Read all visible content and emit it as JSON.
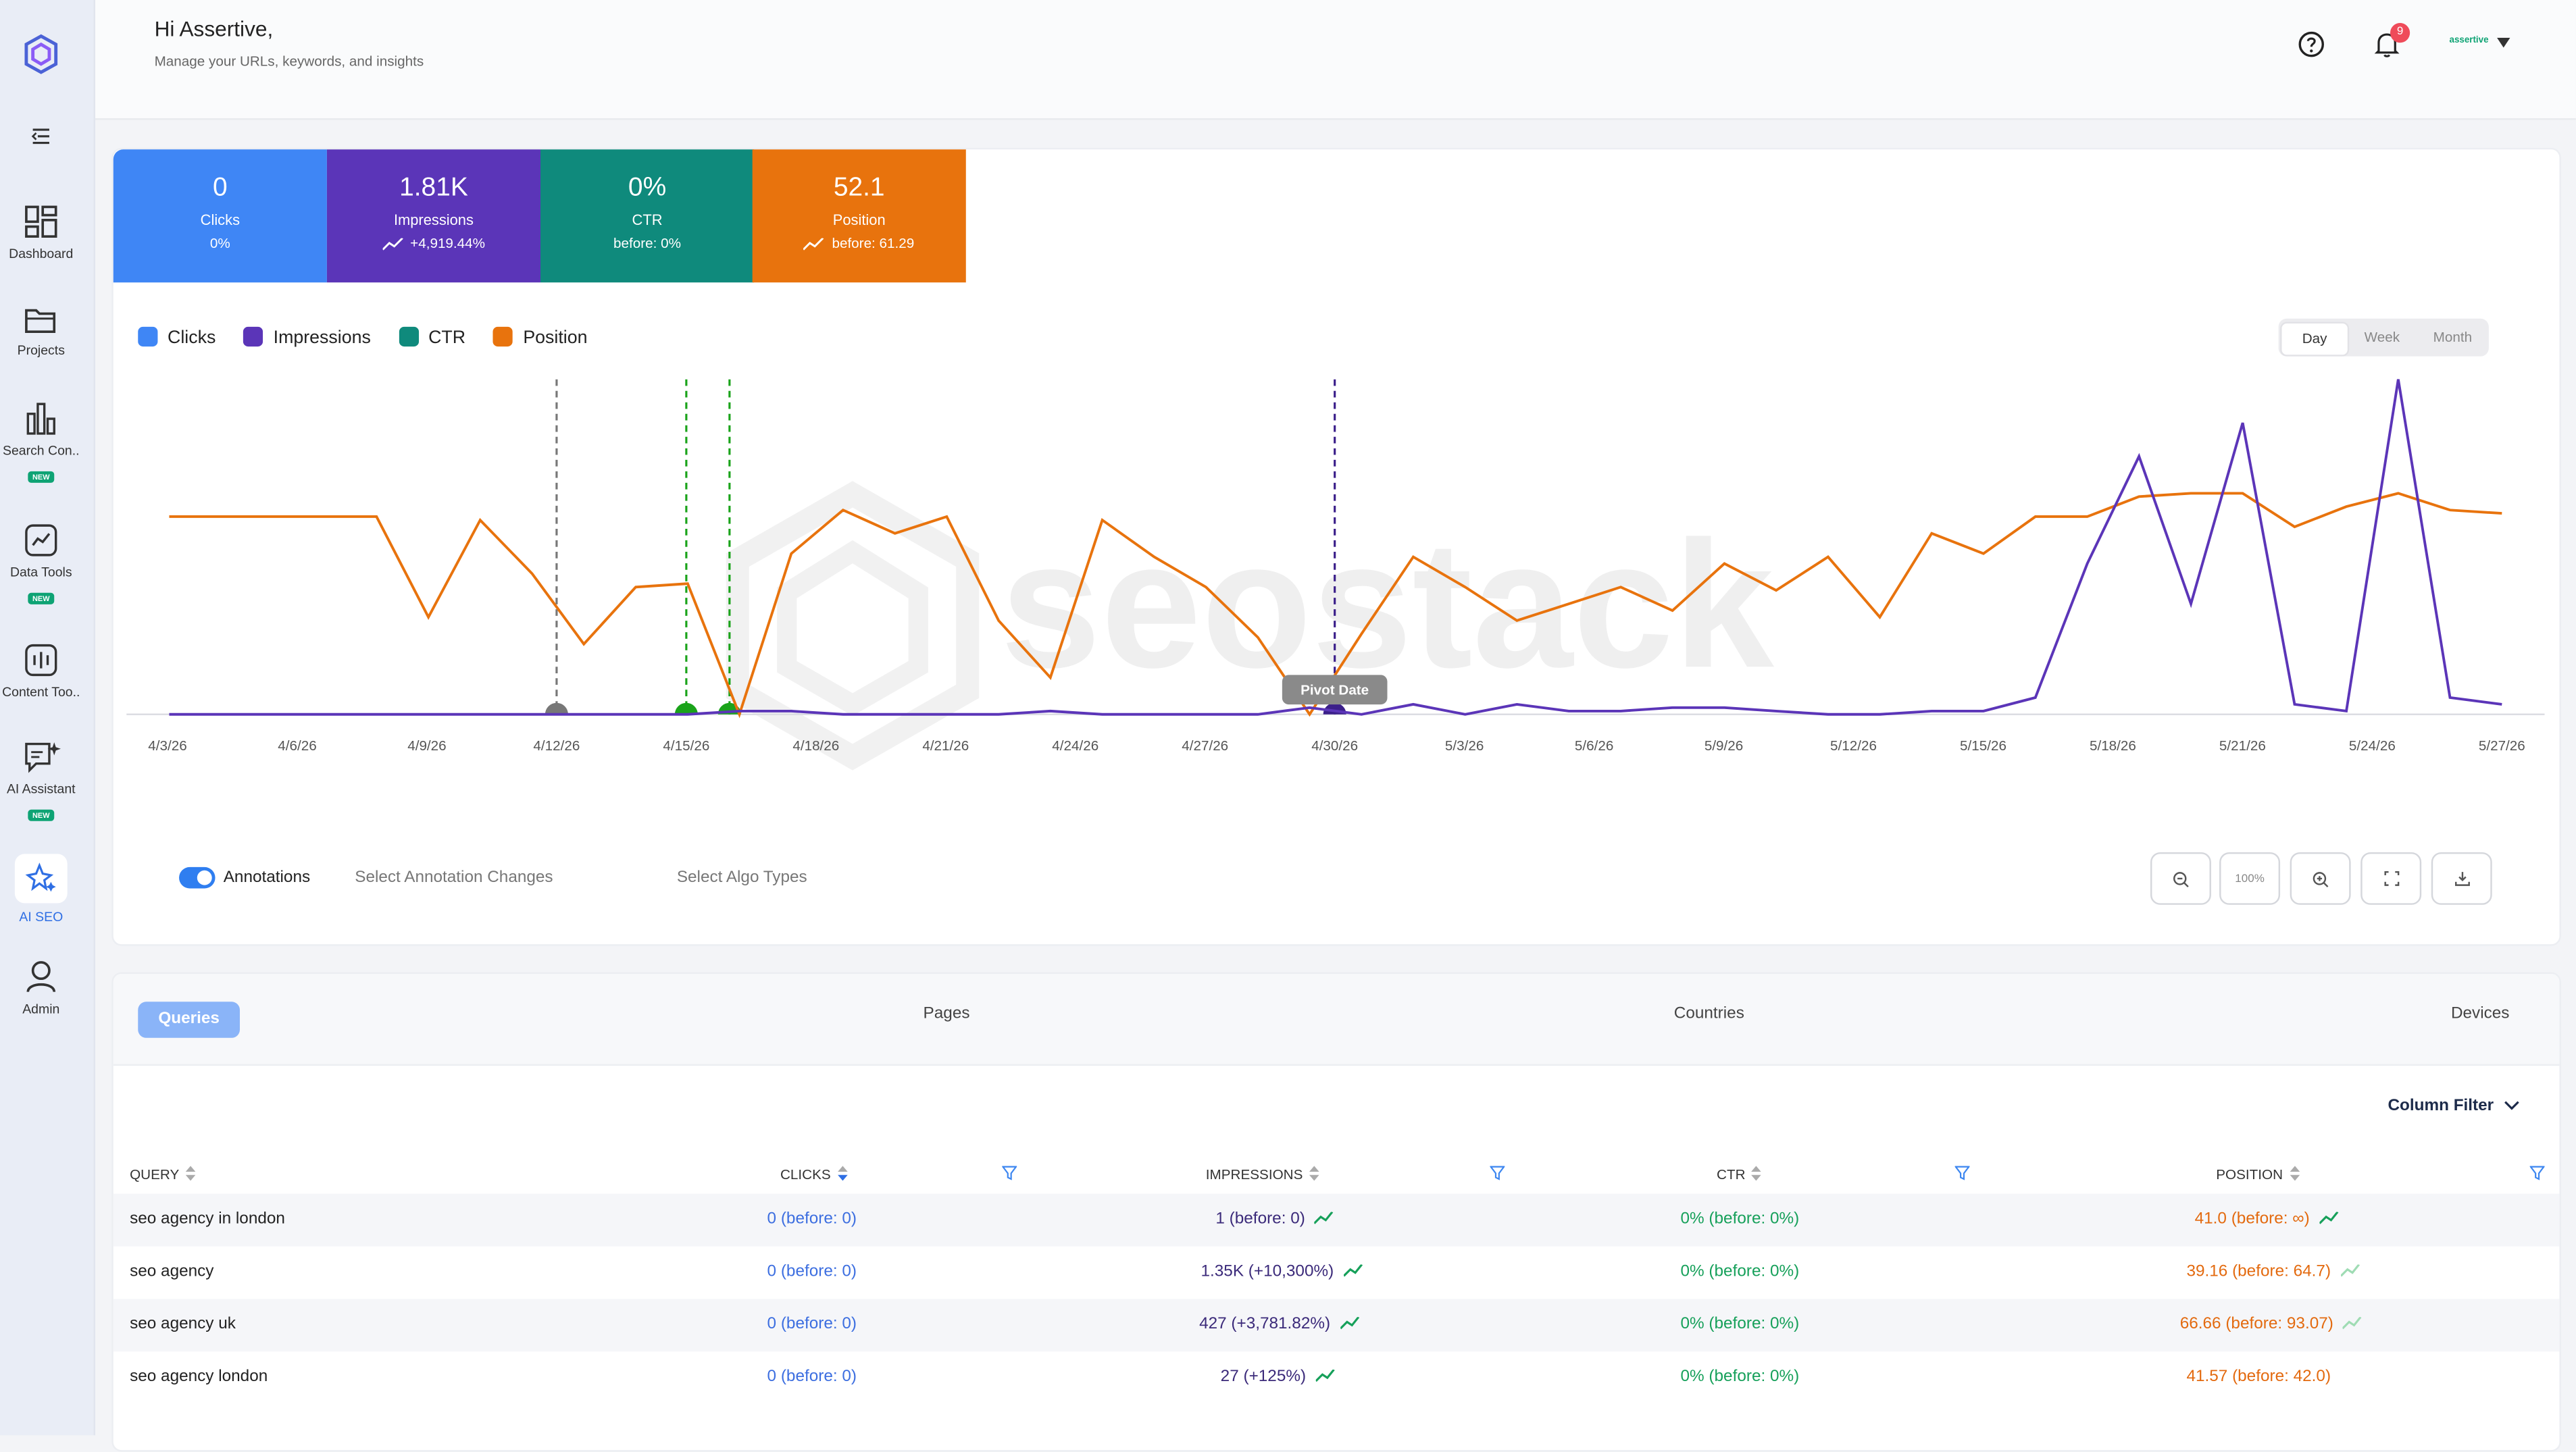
{
  "header": {
    "greeting": "Hi Assertive,",
    "subtitle": "Manage your URLs, keywords, and insights",
    "notifications_count": "9",
    "user_name": "assertive"
  },
  "sidebar": {
    "items": [
      {
        "label": "Dashboard",
        "icon": "dashboard-icon"
      },
      {
        "label": "Projects",
        "icon": "folder-icon"
      },
      {
        "label": "Search Con..",
        "icon": "bar-chart-icon",
        "badge": "NEW"
      },
      {
        "label": "Data Tools",
        "icon": "line-chart-icon",
        "badge": "NEW"
      },
      {
        "label": "Content Too..",
        "icon": "content-icon"
      },
      {
        "label": "AI Assistant",
        "icon": "chat-sparkle-icon",
        "badge": "NEW"
      },
      {
        "label": "AI SEO",
        "icon": "sparkle-star-icon",
        "active": true
      },
      {
        "label": "Admin",
        "icon": "user-icon"
      }
    ]
  },
  "kpis": [
    {
      "value": "0",
      "label": "Clicks",
      "delta": "0%",
      "color": "#3f86f5"
    },
    {
      "value": "1.81K",
      "label": "Impressions",
      "delta": "+4,919.44%",
      "color": "#5b35b8"
    },
    {
      "value": "0%",
      "label": "CTR",
      "delta": "before: 0%",
      "color": "#0f8a7c"
    },
    {
      "value": "52.1",
      "label": "Position",
      "delta": "before: 61.29",
      "color": "#e8730d"
    }
  ],
  "legend": [
    {
      "name": "Clicks",
      "color": "#3f86f5"
    },
    {
      "name": "Impressions",
      "color": "#5b35b8"
    },
    {
      "name": "CTR",
      "color": "#0f8a7c"
    },
    {
      "name": "Position",
      "color": "#e8730d"
    }
  ],
  "range": {
    "day": "Day",
    "week": "Week",
    "month": "Month",
    "selected": "Day"
  },
  "chart_data": {
    "type": "line",
    "x_tick_labels": [
      "4/3/26",
      "4/6/26",
      "4/9/26",
      "4/12/26",
      "4/15/26",
      "4/18/26",
      "4/21/26",
      "4/24/26",
      "4/27/26",
      "4/30/26",
      "5/3/26",
      "5/6/26",
      "5/9/26",
      "5/12/26",
      "5/15/26",
      "5/18/26",
      "5/21/26",
      "5/24/26",
      "5/27/26"
    ],
    "series": [
      {
        "name": "Position",
        "color": "#e8730d",
        "values": [
          0.59,
          0.59,
          0.59,
          0.59,
          0.59,
          0.29,
          0.58,
          0.42,
          0.21,
          0.38,
          0.39,
          0.0,
          0.48,
          0.61,
          0.54,
          0.59,
          0.28,
          0.11,
          0.58,
          0.47,
          0.38,
          0.23,
          0.0,
          0.24,
          0.47,
          0.38,
          0.28,
          0.33,
          0.38,
          0.31,
          0.45,
          0.37,
          0.47,
          0.29,
          0.54,
          0.48,
          0.59,
          0.59,
          0.65,
          0.66,
          0.66,
          0.56,
          0.62,
          0.66,
          0.61,
          0.6
        ]
      },
      {
        "name": "Impressions",
        "color": "#5b35b8",
        "values": [
          0,
          0,
          0,
          0,
          0,
          0,
          0,
          0,
          0,
          0,
          0,
          0.01,
          0.01,
          0,
          0,
          0,
          0,
          0.01,
          0,
          0,
          0,
          0,
          0.02,
          0,
          0.03,
          0,
          0.03,
          0.01,
          0.01,
          0.02,
          0.02,
          0.01,
          0,
          0,
          0.01,
          0.01,
          0.05,
          0.45,
          0.77,
          0.33,
          0.87,
          0.03,
          0.01,
          1.0,
          0.05,
          0.03
        ]
      }
    ],
    "markers": [
      {
        "date": "4/12/26",
        "color": "#777777"
      },
      {
        "date": "4/15/26",
        "color": "#1aa31a"
      },
      {
        "date": "4/16/26",
        "color": "#1aa31a"
      },
      {
        "date": "4/30/26",
        "color": "#3b1f8a",
        "label": "Pivot Date"
      }
    ],
    "watermark": "seostack"
  },
  "controls": {
    "annotations_label": "Annotations",
    "select_annotation": "Select Annotation Changes",
    "select_algo": "Select Algo Types",
    "zoom_level": "100%"
  },
  "table": {
    "tabs": [
      "Queries",
      "Pages",
      "Countries",
      "Devices"
    ],
    "column_filter": "Column Filter",
    "columns": [
      "QUERY",
      "CLICKS",
      "IMPRESSIONS",
      "CTR",
      "POSITION"
    ],
    "rows": [
      {
        "query": "seo agency in london",
        "clicks": "0 (before: 0)",
        "impressions": "1 (before: 0)",
        "ctr": "0% (before: 0%)",
        "position": "41.0 (before: ∞)"
      },
      {
        "query": "seo agency",
        "clicks": "0 (before: 0)",
        "impressions": "1.35K (+10,300%)",
        "ctr": "0% (before: 0%)",
        "position": "39.16 (before: 64.7)"
      },
      {
        "query": "seo agency uk",
        "clicks": "0 (before: 0)",
        "impressions": "427 (+3,781.82%)",
        "ctr": "0% (before: 0%)",
        "position": "66.66 (before: 93.07)"
      },
      {
        "query": "seo agency london",
        "clicks": "0 (before: 0)",
        "impressions": "27 (+125%)",
        "ctr": "0% (before: 0%)",
        "position": "41.57 (before: 42.0)"
      }
    ]
  }
}
